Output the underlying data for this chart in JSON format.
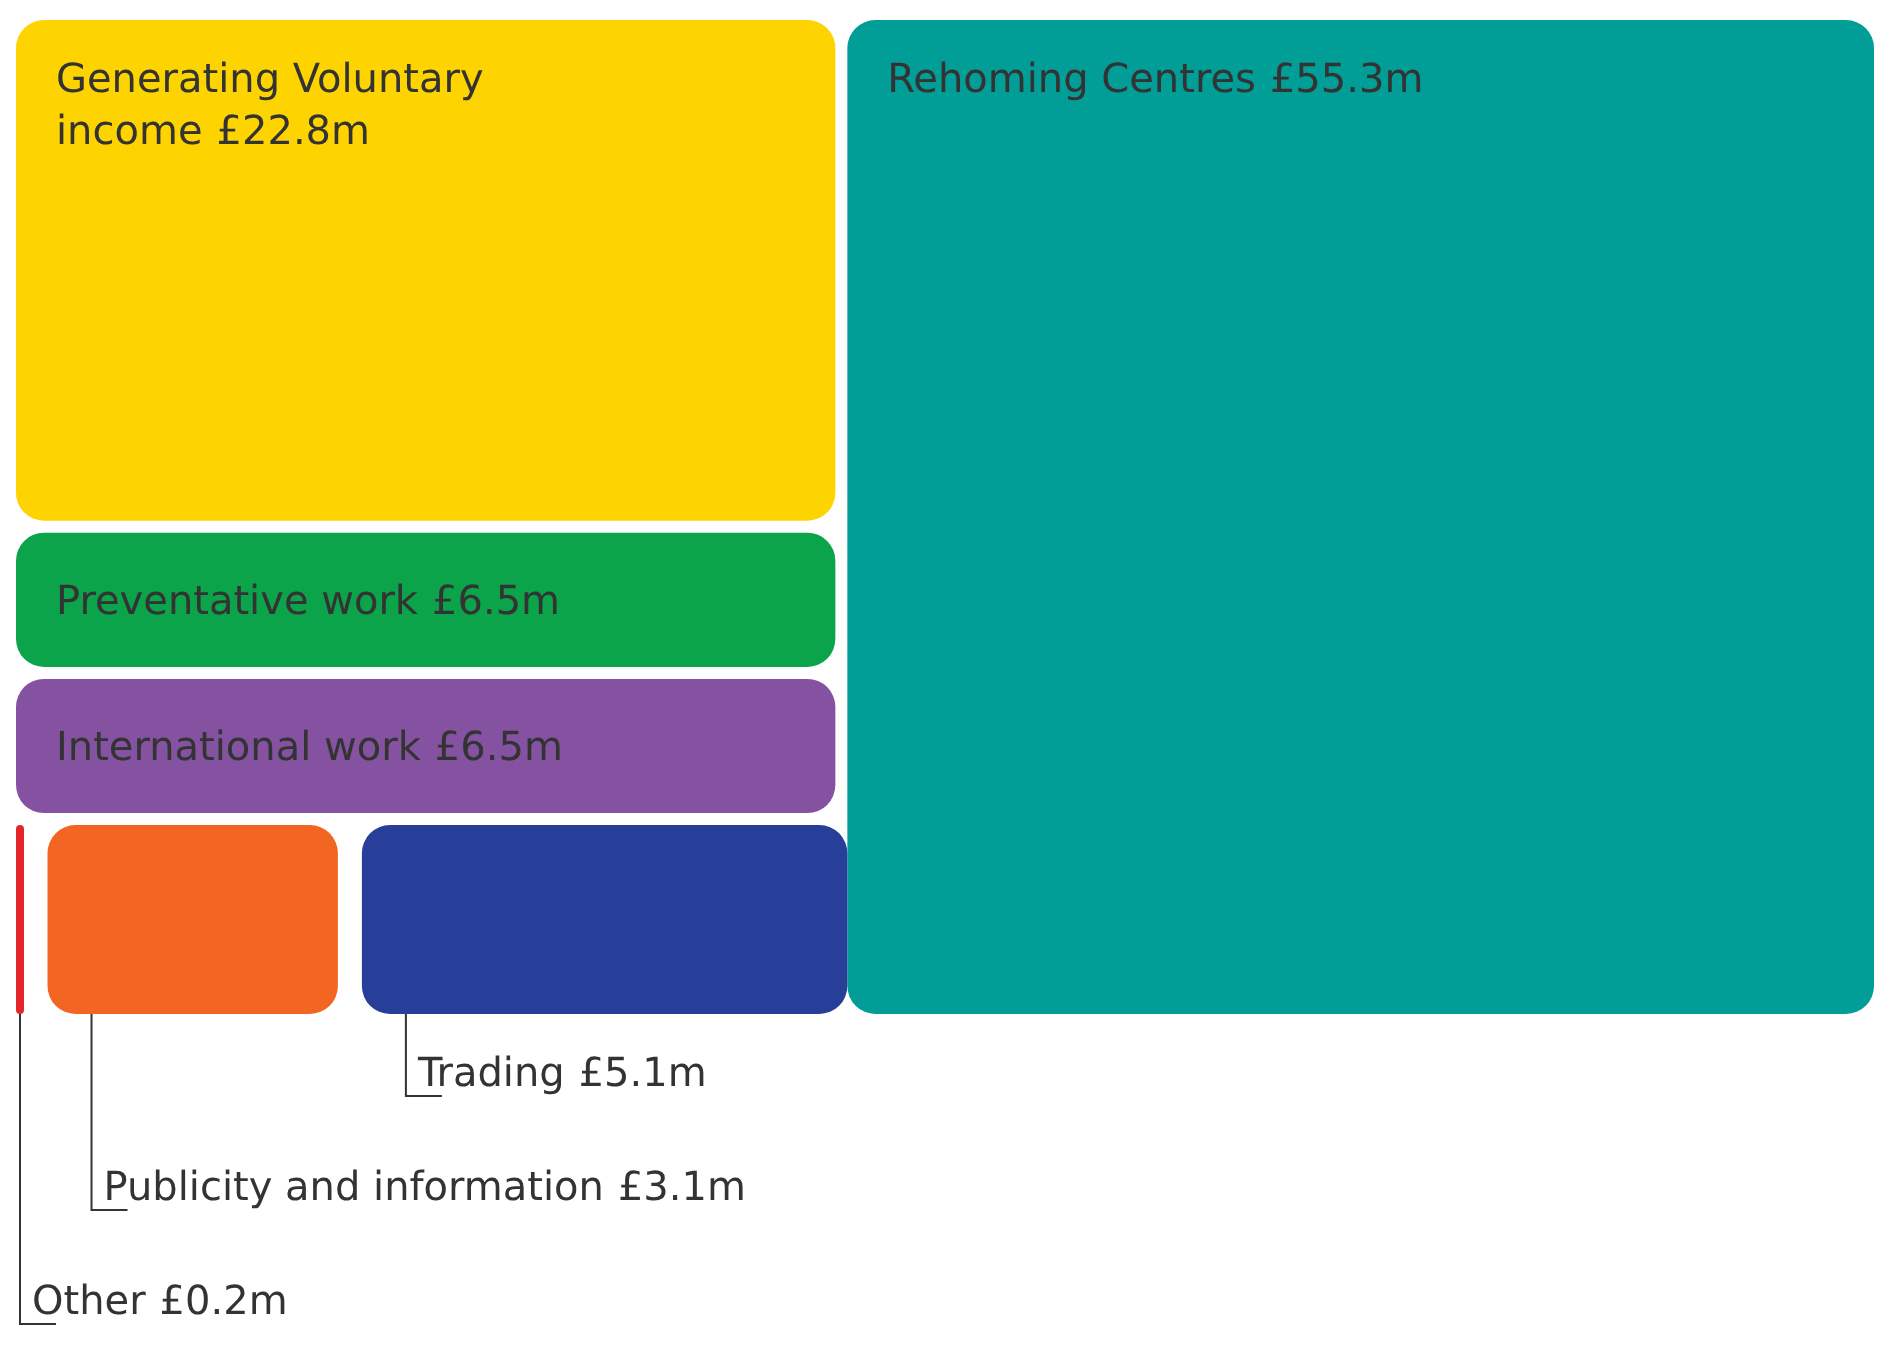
{
  "chart_data": {
    "type": "other",
    "categories": [
      "Generating Voluntary income",
      "Rehoming Centres",
      "Preventative work",
      "International work",
      "Other",
      "Publicity and information",
      "Trading"
    ],
    "values": [
      22.8,
      55.3,
      6.5,
      6.5,
      0.2,
      3.1,
      5.1
    ],
    "value_labels": [
      "£22.8m",
      "£55.3m",
      "£6.5m",
      "£6.5m",
      "£0.2m",
      "£3.1m",
      "£5.1m"
    ],
    "colors": [
      "#fdd400",
      "#009e96",
      "#0ba44a",
      "#8452a1",
      "#e4262b",
      "#f26522",
      "#273f98"
    ]
  }
}
